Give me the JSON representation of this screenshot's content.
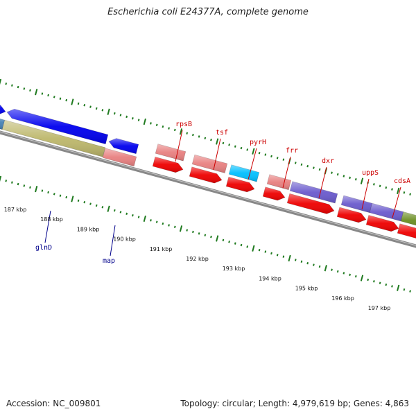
{
  "header": {
    "title": "Escherichia coli E24377A, complete genome"
  },
  "footer": {
    "accession": "Accession: NC_009801",
    "stats": "Topology: circular; Length: 4,979,619 bp; Genes: 4,863"
  },
  "colors": {
    "backbone": "#888888",
    "tick": "#1f7a1f",
    "label_red": "#cc0000",
    "label_blue": "#00008b",
    "gene_blue": "#0000ee",
    "gene_olive": "#bdb76b",
    "gene_salmon": "#e88080",
    "gene_red": "#ee0000",
    "gene_cyan": "#00bfff",
    "gene_slate": "#6a5acd",
    "gene_green": "#6b8e23",
    "gene_steel": "#4682b4"
  },
  "chart_data": {
    "type": "genome_map",
    "unit": "kbp",
    "scale_labels": [
      "187 kbp",
      "188 kbp",
      "189 kbp",
      "190 kbp",
      "191 kbp",
      "192 kbp",
      "193 kbp",
      "194 kbp",
      "195 kbp",
      "196 kbp",
      "197 kbp"
    ],
    "gene_labels_top": [
      "rpsB",
      "tsf",
      "pyrH",
      "frr",
      "dxr",
      "uppS",
      "cdsA"
    ],
    "gene_labels_bottom": [
      "glnD",
      "map"
    ]
  }
}
